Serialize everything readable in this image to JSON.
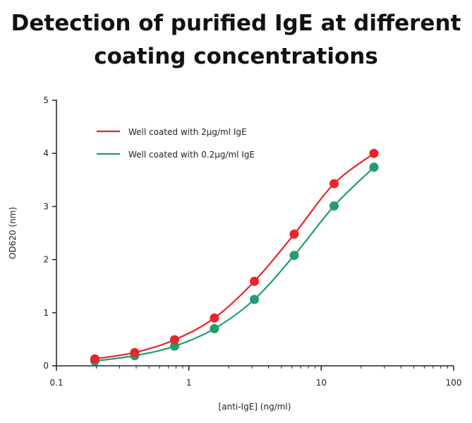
{
  "chart_data": {
    "type": "line",
    "title_line1": "Detection of purified IgE at different",
    "title_line2": "coating concentrations",
    "xlabel": "[anti-IgE] (ng/ml)",
    "ylabel": "OD620 (nm)",
    "x_scale": "log",
    "xlim": [
      0.1,
      100
    ],
    "ylim": [
      0,
      5
    ],
    "x_ticks": [
      0.1,
      1,
      10,
      100
    ],
    "x_tick_labels": [
      "0.1",
      "1",
      "10",
      "100"
    ],
    "y_ticks": [
      0,
      1,
      2,
      3,
      4,
      5
    ],
    "y_tick_labels": [
      "0",
      "1",
      "2",
      "3",
      "4",
      "5"
    ],
    "grid": false,
    "legend_position": "top-left",
    "x": [
      0.195,
      0.39,
      0.78,
      1.56,
      3.125,
      6.25,
      12.5,
      25
    ],
    "series": [
      {
        "name": "Well coated with 2µg/ml IgE",
        "color": "#e8252a",
        "values": [
          0.13,
          0.25,
          0.49,
          0.9,
          1.59,
          2.48,
          3.43,
          4.0
        ]
      },
      {
        "name": "Well coated with 0.2µg/ml IgE",
        "color": "#1f9e6e",
        "values": [
          0.09,
          0.19,
          0.37,
          0.7,
          1.25,
          2.08,
          3.01,
          3.74
        ]
      }
    ]
  }
}
